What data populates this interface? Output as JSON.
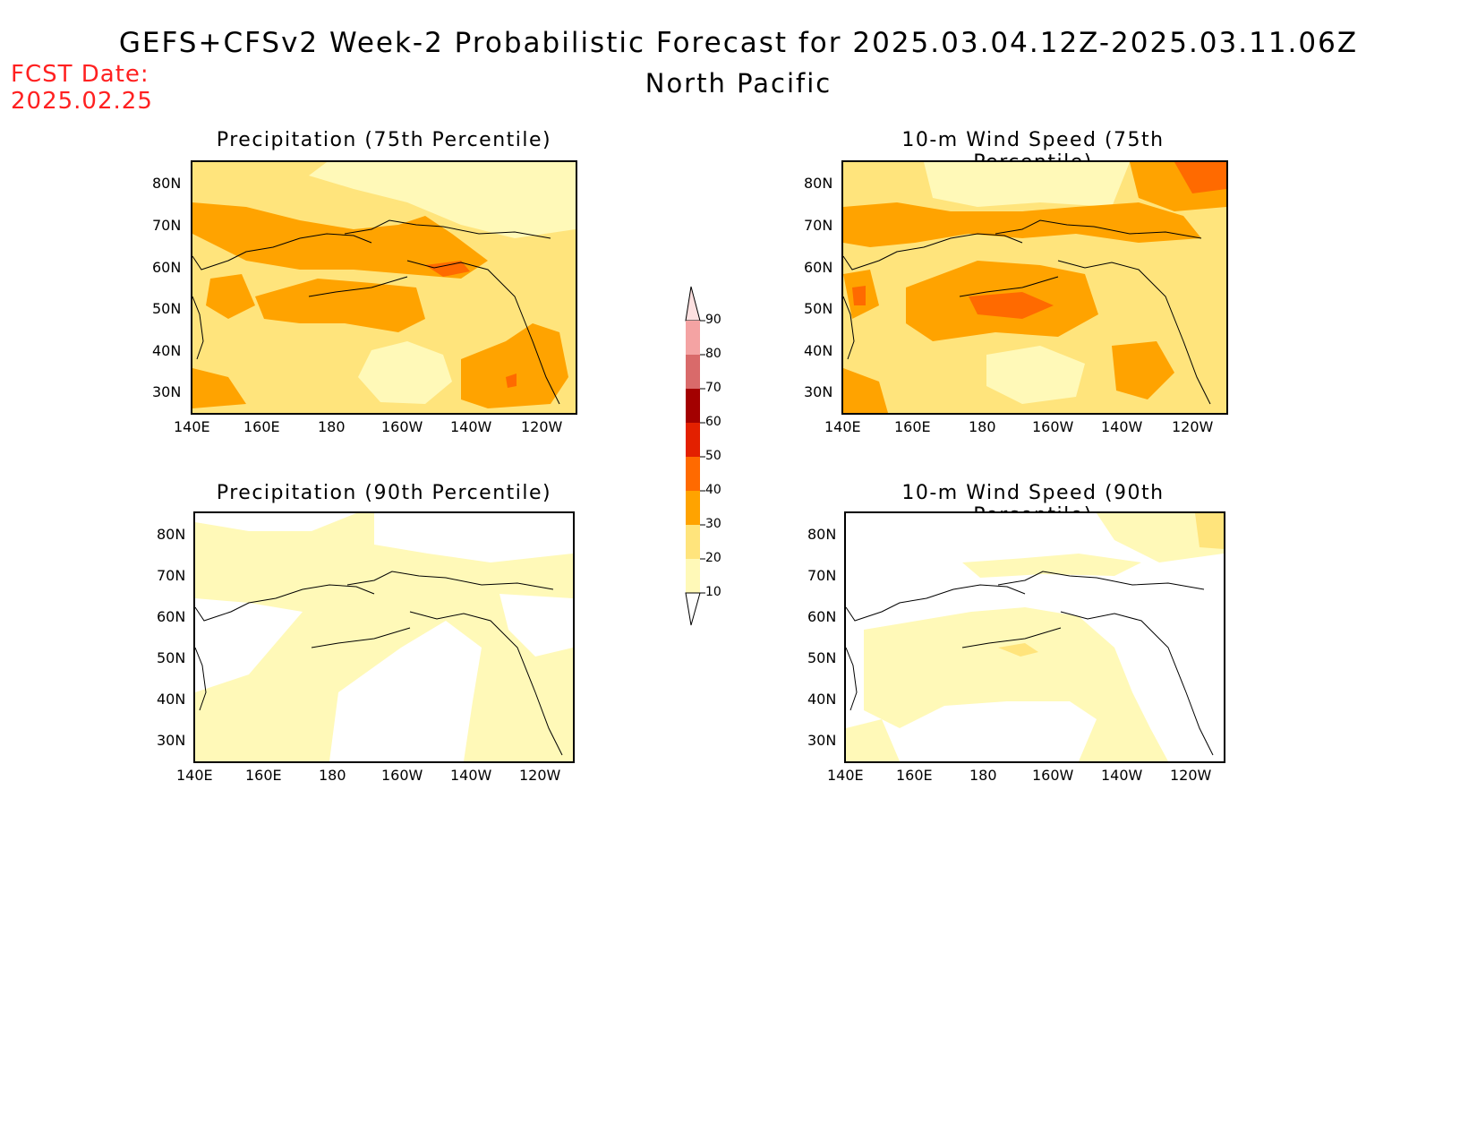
{
  "header": {
    "title": "GEFS+CFSv2 Week-2 Probabilistic Forecast for 2025.03.04.12Z-2025.03.11.06Z",
    "region": "North Pacific",
    "fcst_label": "FCST Date:",
    "fcst_date": "2025.02.25"
  },
  "axes": {
    "lat_ticks": [
      "80N",
      "70N",
      "60N",
      "50N",
      "40N",
      "30N"
    ],
    "lon_ticks": [
      "140E",
      "160E",
      "180",
      "160W",
      "140W",
      "120W"
    ]
  },
  "panels": [
    {
      "title": "Precipitation (75th Percentile)"
    },
    {
      "title": "10-m Wind Speed (75th Percentile)"
    },
    {
      "title": "Precipitation (90th Percentile)"
    },
    {
      "title": "10-m Wind Speed (90th Percentile)"
    }
  ],
  "colorbar": {
    "levels": [
      "10",
      "20",
      "30",
      "40",
      "50",
      "60",
      "70",
      "80",
      "90"
    ],
    "colors": [
      "#fff9b8",
      "#ffe47c",
      "#ffa300",
      "#ff6a00",
      "#e32000",
      "#a30000",
      "#d96a6a",
      "#f4a3a3",
      "#fde0e0"
    ]
  }
}
